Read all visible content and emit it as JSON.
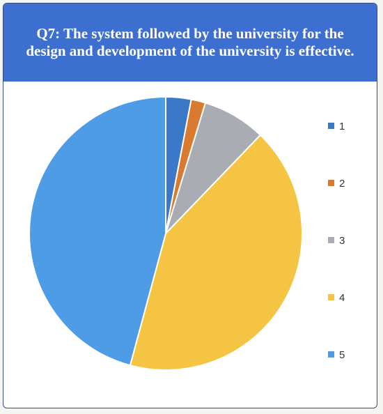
{
  "chart_data": {
    "type": "pie",
    "title": "Q7: The system followed by the university for the design and development of the university is effective.",
    "categories": [
      "1",
      "2",
      "3",
      "4",
      "5"
    ],
    "values": [
      3,
      1.7,
      7.5,
      42,
      45.8
    ],
    "colors": [
      "#3b78c7",
      "#d97a30",
      "#a9acb2",
      "#f5c443",
      "#4e9be6"
    ],
    "legend_position": "right"
  }
}
